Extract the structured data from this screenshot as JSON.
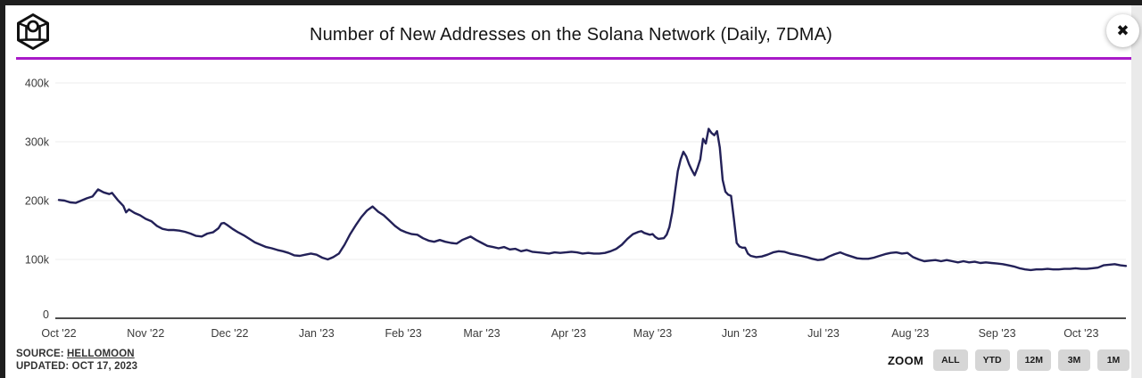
{
  "icons": {
    "close": "✖",
    "logo": "block-cube-logo"
  },
  "theme": {
    "accent_purple": "#a81ac8",
    "line_color": "#232158",
    "grid_color": "#ededed",
    "axis_color": "#4d4d4d",
    "tick_text_color": "#3a3a3a",
    "button_bg": "#d6d6d6",
    "frame_color": "#1e1e1e"
  },
  "header": {
    "title": "Number of New Addresses on the Solana Network (Daily, 7DMA)"
  },
  "footer": {
    "source_label": "SOURCE:",
    "source_link": "HELLOMOON",
    "updated": "UPDATED: OCT 17, 2023",
    "zoom_label": "ZOOM",
    "zoom_buttons": [
      "ALL",
      "YTD",
      "12M",
      "3M",
      "1M"
    ]
  },
  "chart_data": {
    "type": "line",
    "title": "Number of New Addresses on the Solana Network (Daily, 7DMA)",
    "xlabel": "",
    "ylabel": "",
    "unit": "addresses",
    "grid": "horizontal",
    "legend": "none",
    "ylim": [
      0,
      420000
    ],
    "x_range": [
      "2022-10-01",
      "2023-10-17"
    ],
    "y_ticks": [
      {
        "label": "400k",
        "value": 400000
      },
      {
        "label": "300k",
        "value": 300000
      },
      {
        "label": "200k",
        "value": 200000
      },
      {
        "label": "100k",
        "value": 100000
      },
      {
        "label": "0",
        "value": 0
      }
    ],
    "x_ticks": [
      {
        "label": "Oct '22",
        "date": "2022-10-01"
      },
      {
        "label": "Nov '22",
        "date": "2022-11-01"
      },
      {
        "label": "Dec '22",
        "date": "2022-12-01"
      },
      {
        "label": "Jan '23",
        "date": "2023-01-01"
      },
      {
        "label": "Feb '23",
        "date": "2023-02-01"
      },
      {
        "label": "Mar '23",
        "date": "2023-03-01"
      },
      {
        "label": "Apr '23",
        "date": "2023-04-01"
      },
      {
        "label": "May '23",
        "date": "2023-05-01"
      },
      {
        "label": "Jun '23",
        "date": "2023-06-01"
      },
      {
        "label": "Jul '23",
        "date": "2023-07-01"
      },
      {
        "label": "Aug '23",
        "date": "2023-08-01"
      },
      {
        "label": "Sep '23",
        "date": "2023-09-01"
      },
      {
        "label": "Oct '23",
        "date": "2023-10-01"
      }
    ],
    "series": [
      {
        "name": "New Addresses (Daily, 7DMA)",
        "points": [
          [
            "2022-10-01",
            201000
          ],
          [
            "2022-10-03",
            200000
          ],
          [
            "2022-10-05",
            197000
          ],
          [
            "2022-10-07",
            196000
          ],
          [
            "2022-10-09",
            200000
          ],
          [
            "2022-10-11",
            204000
          ],
          [
            "2022-10-13",
            207000
          ],
          [
            "2022-10-15",
            219000
          ],
          [
            "2022-10-17",
            214000
          ],
          [
            "2022-10-19",
            211000
          ],
          [
            "2022-10-20",
            213000
          ],
          [
            "2022-10-22",
            201000
          ],
          [
            "2022-10-24",
            191000
          ],
          [
            "2022-10-25",
            180000
          ],
          [
            "2022-10-26",
            185000
          ],
          [
            "2022-10-28",
            179000
          ],
          [
            "2022-10-30",
            175000
          ],
          [
            "2022-11-01",
            169000
          ],
          [
            "2022-11-03",
            165000
          ],
          [
            "2022-11-05",
            157000
          ],
          [
            "2022-11-07",
            152000
          ],
          [
            "2022-11-09",
            150000
          ],
          [
            "2022-11-11",
            150000
          ],
          [
            "2022-11-13",
            149000
          ],
          [
            "2022-11-15",
            147000
          ],
          [
            "2022-11-17",
            144000
          ],
          [
            "2022-11-19",
            140000
          ],
          [
            "2022-11-21",
            139000
          ],
          [
            "2022-11-23",
            144000
          ],
          [
            "2022-11-25",
            146000
          ],
          [
            "2022-11-27",
            153000
          ],
          [
            "2022-11-28",
            161000
          ],
          [
            "2022-11-29",
            162000
          ],
          [
            "2022-11-30",
            159000
          ],
          [
            "2022-12-02",
            152000
          ],
          [
            "2022-12-04",
            146000
          ],
          [
            "2022-12-06",
            141000
          ],
          [
            "2022-12-08",
            135000
          ],
          [
            "2022-12-10",
            129000
          ],
          [
            "2022-12-12",
            125000
          ],
          [
            "2022-12-14",
            121000
          ],
          [
            "2022-12-16",
            119000
          ],
          [
            "2022-12-18",
            116000
          ],
          [
            "2022-12-20",
            114000
          ],
          [
            "2022-12-22",
            111000
          ],
          [
            "2022-12-24",
            107000
          ],
          [
            "2022-12-26",
            106000
          ],
          [
            "2022-12-28",
            108000
          ],
          [
            "2022-12-30",
            110000
          ],
          [
            "2023-01-01",
            108000
          ],
          [
            "2023-01-03",
            103000
          ],
          [
            "2023-01-05",
            100000
          ],
          [
            "2023-01-07",
            104000
          ],
          [
            "2023-01-09",
            110000
          ],
          [
            "2023-01-11",
            125000
          ],
          [
            "2023-01-13",
            143000
          ],
          [
            "2023-01-15",
            158000
          ],
          [
            "2023-01-17",
            172000
          ],
          [
            "2023-01-19",
            183000
          ],
          [
            "2023-01-21",
            190000
          ],
          [
            "2023-01-23",
            181000
          ],
          [
            "2023-01-25",
            175000
          ],
          [
            "2023-01-27",
            166000
          ],
          [
            "2023-01-29",
            157000
          ],
          [
            "2023-01-31",
            150000
          ],
          [
            "2023-02-02",
            146000
          ],
          [
            "2023-02-04",
            143000
          ],
          [
            "2023-02-06",
            142000
          ],
          [
            "2023-02-08",
            136000
          ],
          [
            "2023-02-10",
            132000
          ],
          [
            "2023-02-12",
            130000
          ],
          [
            "2023-02-14",
            133000
          ],
          [
            "2023-02-16",
            130000
          ],
          [
            "2023-02-18",
            128000
          ],
          [
            "2023-02-20",
            127000
          ],
          [
            "2023-02-22",
            133000
          ],
          [
            "2023-02-24",
            137000
          ],
          [
            "2023-02-25",
            139000
          ],
          [
            "2023-02-27",
            133000
          ],
          [
            "2023-03-01",
            128000
          ],
          [
            "2023-03-03",
            123000
          ],
          [
            "2023-03-05",
            121000
          ],
          [
            "2023-03-07",
            119000
          ],
          [
            "2023-03-09",
            121000
          ],
          [
            "2023-03-11",
            117000
          ],
          [
            "2023-03-13",
            118000
          ],
          [
            "2023-03-15",
            114000
          ],
          [
            "2023-03-17",
            116000
          ],
          [
            "2023-03-19",
            113000
          ],
          [
            "2023-03-21",
            112000
          ],
          [
            "2023-03-23",
            111000
          ],
          [
            "2023-03-25",
            110000
          ],
          [
            "2023-03-27",
            112000
          ],
          [
            "2023-03-29",
            111000
          ],
          [
            "2023-03-31",
            112000
          ],
          [
            "2023-04-02",
            113000
          ],
          [
            "2023-04-04",
            112000
          ],
          [
            "2023-04-06",
            110000
          ],
          [
            "2023-04-08",
            111000
          ],
          [
            "2023-04-10",
            110000
          ],
          [
            "2023-04-12",
            110000
          ],
          [
            "2023-04-14",
            111000
          ],
          [
            "2023-04-16",
            114000
          ],
          [
            "2023-04-18",
            118000
          ],
          [
            "2023-04-20",
            125000
          ],
          [
            "2023-04-22",
            135000
          ],
          [
            "2023-04-24",
            143000
          ],
          [
            "2023-04-26",
            147000
          ],
          [
            "2023-04-27",
            148000
          ],
          [
            "2023-04-28",
            145000
          ],
          [
            "2023-04-30",
            142000
          ],
          [
            "2023-05-01",
            143000
          ],
          [
            "2023-05-02",
            138000
          ],
          [
            "2023-05-03",
            135000
          ],
          [
            "2023-05-05",
            136000
          ],
          [
            "2023-05-06",
            142000
          ],
          [
            "2023-05-07",
            155000
          ],
          [
            "2023-05-08",
            180000
          ],
          [
            "2023-05-09",
            215000
          ],
          [
            "2023-05-10",
            250000
          ],
          [
            "2023-05-11",
            270000
          ],
          [
            "2023-05-12",
            283000
          ],
          [
            "2023-05-13",
            275000
          ],
          [
            "2023-05-14",
            262000
          ],
          [
            "2023-05-15",
            252000
          ],
          [
            "2023-05-16",
            243000
          ],
          [
            "2023-05-17",
            255000
          ],
          [
            "2023-05-18",
            270000
          ],
          [
            "2023-05-19",
            305000
          ],
          [
            "2023-05-20",
            297000
          ],
          [
            "2023-05-21",
            322000
          ],
          [
            "2023-05-22",
            315000
          ],
          [
            "2023-05-23",
            311000
          ],
          [
            "2023-05-24",
            318000
          ],
          [
            "2023-05-25",
            290000
          ],
          [
            "2023-05-26",
            235000
          ],
          [
            "2023-05-27",
            215000
          ],
          [
            "2023-05-28",
            210000
          ],
          [
            "2023-05-29",
            208000
          ],
          [
            "2023-05-30",
            170000
          ],
          [
            "2023-05-31",
            128000
          ],
          [
            "2023-06-01",
            122000
          ],
          [
            "2023-06-02",
            120000
          ],
          [
            "2023-06-03",
            120000
          ],
          [
            "2023-06-04",
            110000
          ],
          [
            "2023-06-05",
            106000
          ],
          [
            "2023-06-07",
            104000
          ],
          [
            "2023-06-09",
            105000
          ],
          [
            "2023-06-11",
            108000
          ],
          [
            "2023-06-13",
            112000
          ],
          [
            "2023-06-15",
            114000
          ],
          [
            "2023-06-17",
            113000
          ],
          [
            "2023-06-19",
            110000
          ],
          [
            "2023-06-21",
            108000
          ],
          [
            "2023-06-23",
            106000
          ],
          [
            "2023-06-25",
            104000
          ],
          [
            "2023-06-27",
            101000
          ],
          [
            "2023-06-29",
            99000
          ],
          [
            "2023-07-01",
            100000
          ],
          [
            "2023-07-03",
            105000
          ],
          [
            "2023-07-05",
            109000
          ],
          [
            "2023-07-07",
            112000
          ],
          [
            "2023-07-09",
            108000
          ],
          [
            "2023-07-11",
            105000
          ],
          [
            "2023-07-13",
            102000
          ],
          [
            "2023-07-15",
            101000
          ],
          [
            "2023-07-17",
            101000
          ],
          [
            "2023-07-19",
            103000
          ],
          [
            "2023-07-21",
            106000
          ],
          [
            "2023-07-23",
            109000
          ],
          [
            "2023-07-25",
            111000
          ],
          [
            "2023-07-27",
            112000
          ],
          [
            "2023-07-29",
            110000
          ],
          [
            "2023-07-31",
            111000
          ],
          [
            "2023-08-02",
            104000
          ],
          [
            "2023-08-04",
            100000
          ],
          [
            "2023-08-06",
            97000
          ],
          [
            "2023-08-08",
            98000
          ],
          [
            "2023-08-10",
            99000
          ],
          [
            "2023-08-12",
            97000
          ],
          [
            "2023-08-14",
            99000
          ],
          [
            "2023-08-16",
            97000
          ],
          [
            "2023-08-18",
            95000
          ],
          [
            "2023-08-20",
            97000
          ],
          [
            "2023-08-22",
            95000
          ],
          [
            "2023-08-24",
            96000
          ],
          [
            "2023-08-26",
            94000
          ],
          [
            "2023-08-28",
            95000
          ],
          [
            "2023-08-30",
            94000
          ],
          [
            "2023-09-01",
            93000
          ],
          [
            "2023-09-03",
            92000
          ],
          [
            "2023-09-05",
            90000
          ],
          [
            "2023-09-07",
            88000
          ],
          [
            "2023-09-09",
            85000
          ],
          [
            "2023-09-11",
            83000
          ],
          [
            "2023-09-13",
            82000
          ],
          [
            "2023-09-15",
            83000
          ],
          [
            "2023-09-17",
            83000
          ],
          [
            "2023-09-19",
            84000
          ],
          [
            "2023-09-21",
            83000
          ],
          [
            "2023-09-23",
            83000
          ],
          [
            "2023-09-25",
            84000
          ],
          [
            "2023-09-27",
            84000
          ],
          [
            "2023-09-29",
            85000
          ],
          [
            "2023-10-01",
            84000
          ],
          [
            "2023-10-03",
            84000
          ],
          [
            "2023-10-05",
            85000
          ],
          [
            "2023-10-07",
            86000
          ],
          [
            "2023-10-09",
            90000
          ],
          [
            "2023-10-11",
            91000
          ],
          [
            "2023-10-13",
            92000
          ],
          [
            "2023-10-15",
            90000
          ],
          [
            "2023-10-17",
            89000
          ]
        ]
      }
    ]
  }
}
